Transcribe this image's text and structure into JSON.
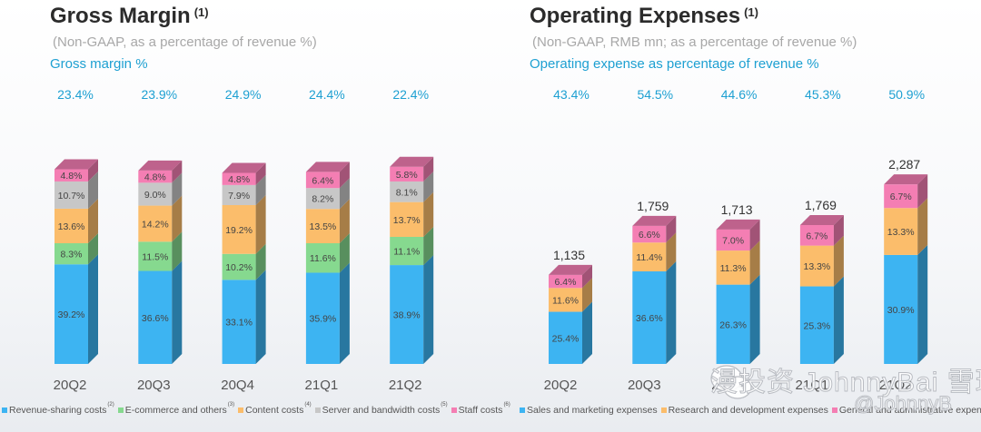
{
  "left": {
    "title": "Gross Margin",
    "title_note": "(1)",
    "subtitle": "(Non-GAAP, as a percentage of revenue %)",
    "caption": "Gross margin %",
    "top_values": [
      "23.4%",
      "23.9%",
      "24.9%",
      "24.4%",
      "22.4%"
    ],
    "x_labels": [
      "20Q2",
      "20Q3",
      "20Q4",
      "21Q1",
      "21Q2"
    ],
    "legend": [
      {
        "label": "Revenue-sharing costs",
        "note": "(2)",
        "color": "#3db4f2"
      },
      {
        "label": "E-commerce and others",
        "note": "(3)",
        "color": "#86d98f"
      },
      {
        "label": "Content costs",
        "note": "(4)",
        "color": "#fbbd6b"
      },
      {
        "label": "Server and bandwidth costs",
        "note": "(5)",
        "color": "#c7c7c7"
      },
      {
        "label": "Staff costs",
        "note": "(6)",
        "color": "#f47eb3"
      }
    ]
  },
  "right": {
    "title": "Operating Expenses",
    "title_note": "(1)",
    "subtitle": "(Non-GAAP, RMB mn; as a percentage of revenue %)",
    "caption": "Operating expense as percentage of revenue %",
    "top_values": [
      "43.4%",
      "54.5%",
      "44.6%",
      "45.3%",
      "50.9%"
    ],
    "x_labels": [
      "20Q2",
      "20Q3",
      "20Q4",
      "21Q1",
      "21Q2"
    ],
    "legend": [
      {
        "label": "Sales and marketing expenses",
        "color": "#3db4f2"
      },
      {
        "label": "Research and development expenses",
        "color": "#fbbd6b"
      },
      {
        "label": "General and administrative expenses",
        "color": "#f47eb3"
      }
    ]
  },
  "watermark": {
    "text": "漫投资 JohnnyBai 雪球社区",
    "handle": "@JohnnyB"
  },
  "chart_data": [
    {
      "type": "bar",
      "stacked": true,
      "title": "Gross Margin (1)",
      "subtitle": "(Non-GAAP, as a percentage of revenue %)",
      "categories": [
        "20Q2",
        "20Q3",
        "20Q4",
        "21Q1",
        "21Q2"
      ],
      "unit": "% of revenue",
      "annotations": {
        "Gross margin %": [
          23.4,
          23.9,
          24.9,
          24.4,
          22.4
        ]
      },
      "series": [
        {
          "name": "Revenue-sharing costs",
          "color": "#3db4f2",
          "values": [
            39.2,
            36.6,
            33.1,
            35.9,
            38.9
          ]
        },
        {
          "name": "E-commerce and others",
          "color": "#86d98f",
          "values": [
            8.3,
            11.5,
            10.2,
            11.6,
            11.1
          ]
        },
        {
          "name": "Content costs",
          "color": "#fbbd6b",
          "values": [
            13.6,
            14.2,
            19.2,
            13.5,
            13.7
          ]
        },
        {
          "name": "Server and bandwidth costs",
          "color": "#c7c7c7",
          "values": [
            10.7,
            9.0,
            7.9,
            8.2,
            8.1
          ]
        },
        {
          "name": "Staff costs",
          "color": "#f47eb3",
          "values": [
            4.8,
            4.8,
            4.8,
            6.4,
            5.8
          ]
        }
      ],
      "legend_position": "bottom",
      "grid": false
    },
    {
      "type": "bar",
      "stacked": true,
      "title": "Operating Expenses (1)",
      "subtitle": "(Non-GAAP, RMB mn; as a percentage of revenue %)",
      "categories": [
        "20Q2",
        "20Q3",
        "20Q4",
        "21Q1",
        "21Q2"
      ],
      "totals_rmb_mn": [
        1135,
        1759,
        1713,
        1769,
        2287
      ],
      "total_labels": [
        "1,135",
        "1,759",
        "1,713",
        "1,769",
        "2,287"
      ],
      "annotations": {
        "Operating expense as percentage of revenue %": [
          43.4,
          54.5,
          44.6,
          45.3,
          50.9
        ]
      },
      "series": [
        {
          "name": "Sales and marketing expenses",
          "color": "#3db4f2",
          "values": [
            25.4,
            36.6,
            26.3,
            25.3,
            30.9
          ]
        },
        {
          "name": "Research and development expenses",
          "color": "#fbbd6b",
          "values": [
            11.6,
            11.4,
            11.3,
            13.3,
            13.3
          ]
        },
        {
          "name": "General and administrative expenses",
          "color": "#f47eb3",
          "values": [
            6.4,
            6.6,
            7.0,
            6.7,
            6.7
          ]
        }
      ],
      "legend_position": "bottom",
      "grid": false
    }
  ]
}
